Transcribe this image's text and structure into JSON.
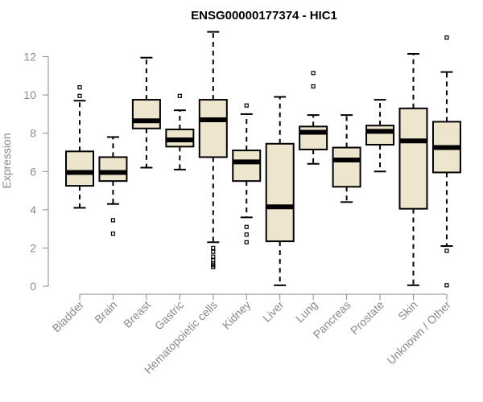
{
  "chart_data": {
    "type": "boxplot",
    "title": "ENSG00000177374 - HIC1",
    "xlabel": "",
    "ylabel": "Expression",
    "ylim": [
      0,
      13.2
    ],
    "yticks": [
      0,
      2,
      4,
      6,
      8,
      10,
      12
    ],
    "categories": [
      "Bladder",
      "Brain",
      "Breast",
      "Gastric",
      "Hematopoietic cells",
      "Kidney",
      "Liver",
      "Lung",
      "Pancreas",
      "Prostate",
      "Skin",
      "Unknown / Other"
    ],
    "boxes": [
      {
        "name": "Bladder",
        "whisker_low": 4.1,
        "q1": 5.25,
        "median": 5.95,
        "q3": 7.05,
        "whisker_high": 9.7,
        "outliers": [
          9.95,
          10.4
        ]
      },
      {
        "name": "Brain",
        "whisker_low": 4.3,
        "q1": 5.5,
        "median": 5.95,
        "q3": 6.75,
        "whisker_high": 7.8,
        "outliers": [
          3.45,
          2.75
        ]
      },
      {
        "name": "Breast",
        "whisker_low": 6.2,
        "q1": 8.25,
        "median": 8.65,
        "q3": 9.75,
        "whisker_high": 11.95,
        "outliers": []
      },
      {
        "name": "Gastric",
        "whisker_low": 6.1,
        "q1": 7.3,
        "median": 7.65,
        "q3": 8.2,
        "whisker_high": 9.2,
        "outliers": [
          9.95
        ]
      },
      {
        "name": "Hematopoietic cells",
        "whisker_low": 2.3,
        "q1": 6.75,
        "median": 8.7,
        "q3": 9.75,
        "whisker_high": 13.3,
        "outliers": [
          2.0,
          1.8,
          1.55,
          1.35,
          1.2,
          1.1,
          1.0
        ]
      },
      {
        "name": "Kidney",
        "whisker_low": 3.6,
        "q1": 5.5,
        "median": 6.5,
        "q3": 7.1,
        "whisker_high": 9.0,
        "outliers": [
          9.45,
          3.1,
          2.7,
          2.3
        ]
      },
      {
        "name": "Liver",
        "whisker_low": 0.05,
        "q1": 2.35,
        "median": 4.15,
        "q3": 7.45,
        "whisker_high": 9.9,
        "outliers": []
      },
      {
        "name": "Lung",
        "whisker_low": 6.4,
        "q1": 7.15,
        "median": 8.05,
        "q3": 8.35,
        "whisker_high": 8.95,
        "outliers": [
          10.45,
          11.15
        ]
      },
      {
        "name": "Pancreas",
        "whisker_low": 4.4,
        "q1": 5.2,
        "median": 6.6,
        "q3": 7.25,
        "whisker_high": 8.95,
        "outliers": []
      },
      {
        "name": "Prostate",
        "whisker_low": 6.0,
        "q1": 7.4,
        "median": 8.1,
        "q3": 8.4,
        "whisker_high": 9.75,
        "outliers": []
      },
      {
        "name": "Skin",
        "whisker_low": 0.05,
        "q1": 4.05,
        "median": 7.6,
        "q3": 9.3,
        "whisker_high": 12.15,
        "outliers": []
      },
      {
        "name": "Unknown / Other",
        "whisker_low": 2.1,
        "q1": 5.95,
        "median": 7.25,
        "q3": 8.6,
        "whisker_high": 11.2,
        "outliers": [
          13.0,
          1.85,
          0.05
        ]
      }
    ],
    "colors": {
      "box_fill": "#ede6cc",
      "stroke": "#000000",
      "axis": "#8a8a8a"
    }
  }
}
